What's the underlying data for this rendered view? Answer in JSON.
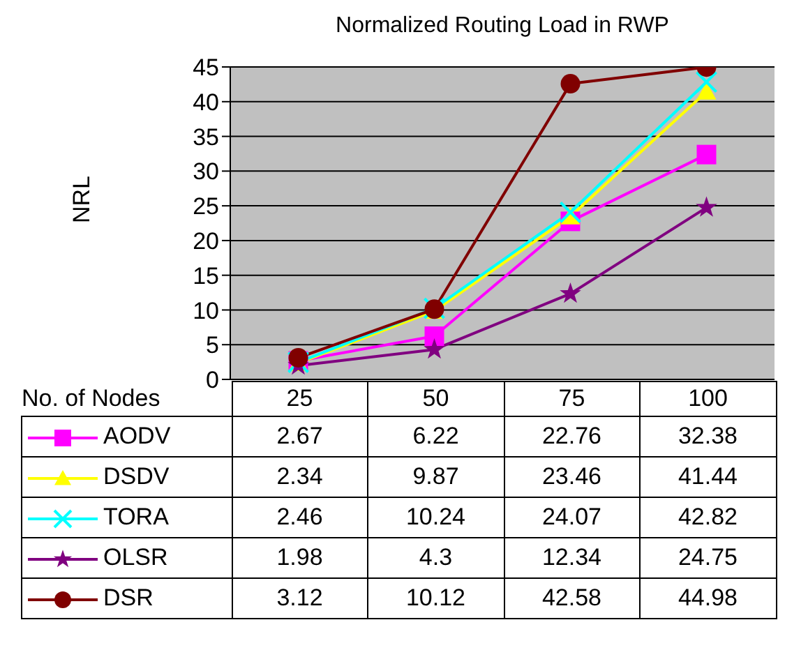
{
  "chart_data": {
    "type": "line",
    "title": "Normalized Routing Load  in RWP",
    "xlabel": "No. of Nodes",
    "ylabel": "NRL",
    "categories": [
      "25",
      "50",
      "75",
      "100"
    ],
    "ylim": [
      0,
      45
    ],
    "yticks": [
      0,
      5,
      10,
      15,
      20,
      25,
      30,
      35,
      40,
      45
    ],
    "grid": "y",
    "legend": "bottom",
    "data_labels": true,
    "series": [
      {
        "name": "AODV",
        "color": "#ff00ff",
        "marker": "square",
        "values": [
          2.67,
          6.22,
          22.76,
          32.38
        ]
      },
      {
        "name": "DSDV",
        "color": "#ffff00",
        "marker": "triangle",
        "values": [
          2.34,
          9.87,
          23.46,
          41.44
        ]
      },
      {
        "name": "TORA",
        "color": "#00ffff",
        "marker": "cross",
        "values": [
          2.46,
          10.24,
          24.07,
          42.82
        ]
      },
      {
        "name": "OLSR",
        "color": "#800080",
        "marker": "star",
        "values": [
          1.98,
          4.3,
          12.34,
          24.75
        ]
      },
      {
        "name": "DSR",
        "color": "#800000",
        "marker": "circle",
        "values": [
          3.12,
          10.12,
          42.58,
          44.98
        ]
      }
    ]
  }
}
